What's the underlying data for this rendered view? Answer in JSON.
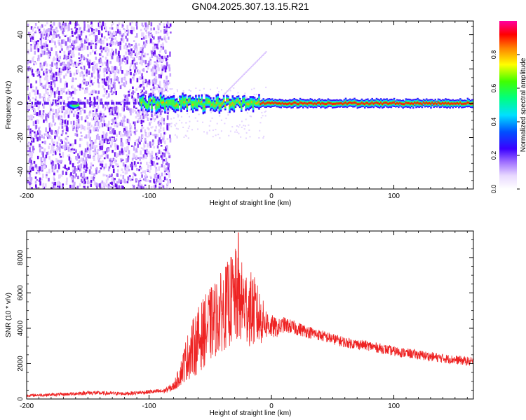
{
  "title": "GN04.2025.307.13.15.R21",
  "chart_data": [
    {
      "type": "heatmap",
      "xlabel": "Height of straight line (km)",
      "ylabel": "Frequency (Hz)",
      "xlim": [
        -200,
        165
      ],
      "ylim": [
        -50,
        48
      ],
      "x_ticks": [
        -200,
        -100,
        0,
        100
      ],
      "y_ticks": [
        -40,
        -20,
        0,
        20,
        40
      ],
      "colorbar": {
        "label": "Normalized spectral amplitude",
        "range": [
          0,
          1
        ],
        "ticks": [
          0.0,
          0.2,
          0.4,
          0.6,
          0.8
        ],
        "tick_labels": [
          "0.0",
          "0.2",
          "0.4",
          "0.6",
          "0.8"
        ]
      },
      "features": {
        "noise_region_x": [
          -200,
          -83
        ],
        "carrier_frequency_hz": 0,
        "carrier_start_x": -108
      }
    },
    {
      "type": "line",
      "xlabel": "Height of straight line (km)",
      "ylabel": "SNR (10 * v/v)",
      "xlim": [
        -200,
        165
      ],
      "ylim": [
        0,
        9500
      ],
      "x_ticks": [
        -200,
        -100,
        0,
        100
      ],
      "y_ticks": [
        0,
        2000,
        4000,
        6000,
        8000
      ],
      "color": "#ee2222",
      "envelope": {
        "x": [
          -200,
          -170,
          -150,
          -120,
          -100,
          -88,
          -80,
          -75,
          -70,
          -65,
          -60,
          -55,
          -50,
          -45,
          -40,
          -35,
          -30,
          -25,
          -20,
          -15,
          -10,
          -5,
          0,
          5,
          10,
          20,
          30,
          40,
          60,
          80,
          100,
          120,
          140,
          165
        ],
        "mid": [
          200,
          260,
          350,
          300,
          400,
          450,
          700,
          1300,
          2200,
          2800,
          3300,
          3800,
          4200,
          4600,
          5000,
          5400,
          5800,
          5500,
          5200,
          5000,
          4600,
          4300,
          4100,
          4000,
          4200,
          4000,
          3800,
          3600,
          3200,
          3000,
          2700,
          2500,
          2300,
          2100
        ],
        "amp": [
          80,
          90,
          120,
          100,
          120,
          130,
          250,
          600,
          1200,
          1600,
          1900,
          2000,
          2100,
          2200,
          2300,
          2500,
          2800,
          2400,
          2200,
          2100,
          1700,
          900,
          700,
          500,
          450,
          400,
          350,
          320,
          300,
          280,
          280,
          270,
          260,
          250
        ]
      },
      "peak": {
        "x": -27,
        "y": 9400
      }
    }
  ]
}
